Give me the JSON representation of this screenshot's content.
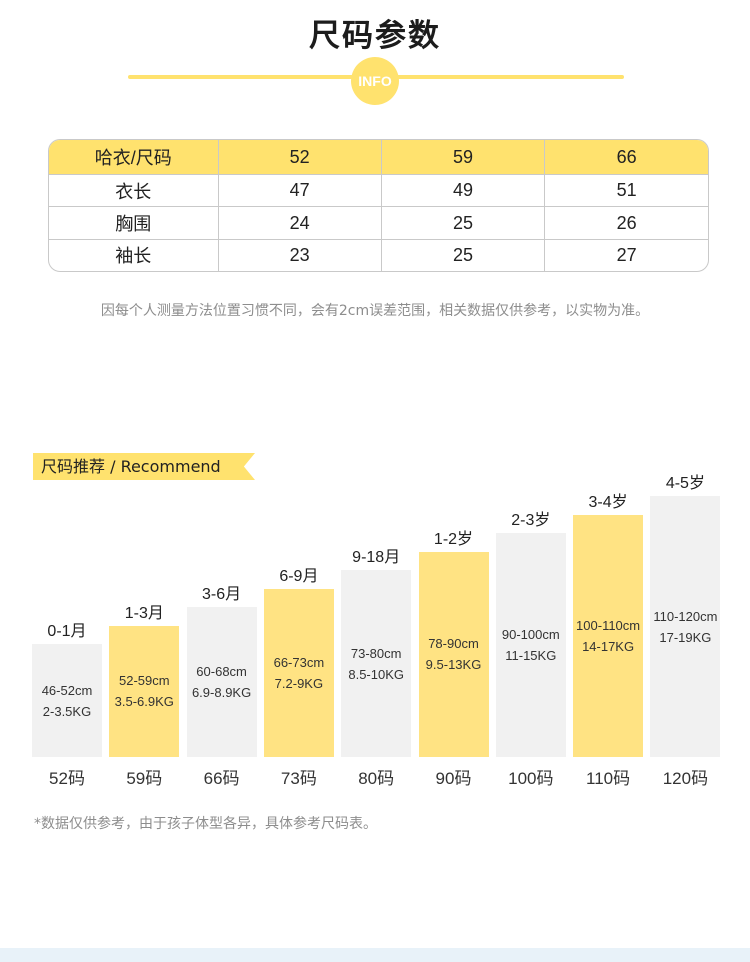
{
  "header": {
    "title": "尺码参数",
    "badge": "INFO"
  },
  "size_table": {
    "header": [
      "哈衣/尺码",
      "52",
      "59",
      "66"
    ],
    "rows": [
      [
        "衣长",
        "47",
        "49",
        "51"
      ],
      [
        "胸围",
        "24",
        "25",
        "26"
      ],
      [
        "袖长",
        "23",
        "25",
        "27"
      ]
    ]
  },
  "note": "因每个人测量方法位置习惯不同，会有2cm误差范围，相关数据仅供参考，以实物为准。",
  "recommend": {
    "tag": "尺码推荐 / Recommend"
  },
  "chart_data": {
    "type": "bar",
    "title": "尺码推荐 / Recommend",
    "categories": [
      "52码",
      "59码",
      "66码",
      "73码",
      "80码",
      "90码",
      "100码",
      "110码",
      "120码"
    ],
    "age_labels": [
      "0-1月",
      "1-3月",
      "3-6月",
      "6-9月",
      "9-18月",
      "1-2岁",
      "2-3岁",
      "3-4岁",
      "4-5岁"
    ],
    "height_labels": [
      "46-52cm",
      "52-59cm",
      "60-68cm",
      "66-73cm",
      "73-80cm",
      "78-90cm",
      "90-100cm",
      "100-110cm",
      "110-120cm"
    ],
    "weight_labels": [
      "2-3.5KG",
      "3.5-6.9KG",
      "6.9-8.9KG",
      "7.2-9KG",
      "8.5-10KG",
      "9.5-13KG",
      "11-15KG",
      "14-17KG",
      "17-19KG"
    ],
    "values": [
      1,
      2,
      3,
      4,
      5,
      6,
      7,
      8,
      9
    ],
    "highlighted": [
      false,
      true,
      false,
      true,
      false,
      true,
      false,
      true,
      false
    ],
    "colors": {
      "highlight": "#ffe383",
      "normal": "#f1f1f1",
      "accent": "#ffe26e"
    }
  },
  "footnote": "*数据仅供参考，由于孩子体型各异，具体参考尺码表。"
}
